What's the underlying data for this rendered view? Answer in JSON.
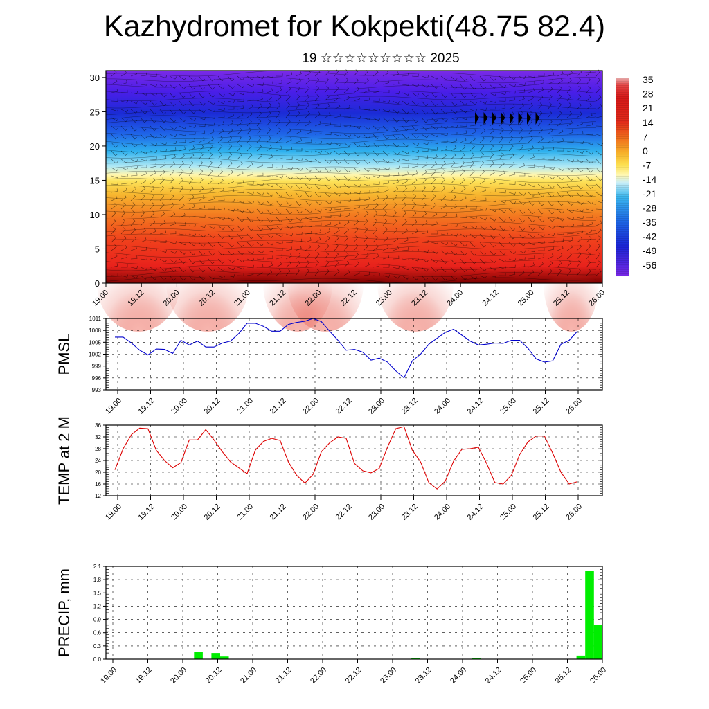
{
  "title": "Kazhydromet for Kokpekti(48.75 82.4)",
  "subtitle": "19 ☆☆☆☆☆☆☆☆☆ 2025",
  "colors": {
    "pmsl_line": "#0000cc",
    "temp_line": "#dd0000",
    "precip_bar": "#00ee00"
  },
  "chart_data": [
    {
      "type": "heatmap",
      "name": "vertical cross-section",
      "x_ticks": [
        "19.00",
        "19.12",
        "20.00",
        "20.12",
        "21.00",
        "21.12",
        "22.00",
        "22.12",
        "23.00",
        "23.12",
        "24.00",
        "24.12",
        "25.00",
        "25.12",
        "26.00"
      ],
      "y_ticks": [
        "0",
        "5",
        "10",
        "15",
        "20",
        "25",
        "30"
      ],
      "ylim": [
        0,
        31
      ],
      "colorbar_labels": [
        "35",
        "28",
        "21",
        "14",
        "7",
        "0",
        "-7",
        "-14",
        "-21",
        "-28",
        "-35",
        "-42",
        "-49",
        "-56"
      ],
      "colorbar_range": [
        -60,
        38
      ]
    },
    {
      "type": "line",
      "ylabel": "PMSL",
      "x_ticks": [
        "19.00",
        "19.12",
        "20.00",
        "20.12",
        "21.00",
        "21.12",
        "22.00",
        "22.12",
        "23.00",
        "23.12",
        "24.00",
        "24.12",
        "25.00",
        "25.12",
        "26.00"
      ],
      "y_ticks": [
        "1011",
        "1008",
        "1005",
        "1002",
        "999",
        "996",
        "993"
      ],
      "ylim": [
        993,
        1011
      ],
      "series": [
        {
          "values": [
            1006.3,
            1006.3,
            1004.8,
            1003.0,
            1001.8,
            1003.3,
            1003.2,
            1002.2,
            1005.5,
            1004.3,
            1005.3,
            1003.8,
            1003.8,
            1004.8,
            1005.3,
            1007.2,
            1009.8,
            1009.8,
            1009.0,
            1007.8,
            1007.8,
            1009.5,
            1010.0,
            1010.3,
            1011.0,
            1010.2,
            1007.8,
            1005.5,
            1003.0,
            1003.2,
            1002.5,
            1000.5,
            1001.0,
            1000.0,
            997.8,
            996.0,
            1000.3,
            1002.0,
            1004.5,
            1006.0,
            1007.5,
            1008.3,
            1006.8,
            1005.3,
            1004.3,
            1004.5,
            1004.8,
            1004.7,
            1005.5,
            1005.5,
            1003.5,
            1000.8,
            1000.0,
            1000.3,
            1004.5,
            1005.5,
            1007.8
          ]
        }
      ]
    },
    {
      "type": "line",
      "ylabel": "TEMP at 2 M",
      "x_ticks": [
        "19.00",
        "19.12",
        "20.00",
        "20.12",
        "21.00",
        "21.12",
        "22.00",
        "22.12",
        "23.00",
        "23.12",
        "24.00",
        "24.12",
        "25.00",
        "25.12",
        "26.00"
      ],
      "y_ticks": [
        "36",
        "32",
        "28",
        "24",
        "20",
        "16",
        "12"
      ],
      "ylim": [
        12,
        36
      ],
      "series": [
        {
          "values": [
            20.8,
            28.0,
            32.8,
            35.0,
            34.8,
            27.5,
            24.0,
            21.5,
            23.3,
            31.0,
            31.0,
            34.5,
            31.0,
            27.0,
            23.5,
            21.5,
            19.5,
            27.5,
            30.5,
            31.5,
            30.8,
            23.5,
            19.0,
            16.3,
            19.3,
            27.0,
            30.0,
            32.0,
            31.5,
            23.0,
            20.5,
            19.8,
            21.3,
            28.5,
            34.8,
            35.5,
            27.5,
            23.5,
            16.5,
            14.3,
            17.0,
            23.8,
            27.8,
            28.0,
            28.5,
            23.0,
            16.5,
            16.0,
            19.0,
            26.0,
            30.3,
            32.3,
            32.3,
            26.5,
            20.0,
            16.0,
            16.8
          ]
        }
      ]
    },
    {
      "type": "bar",
      "ylabel": "PRECIP, mm",
      "x_ticks": [
        "19.00",
        "19.12",
        "20.00",
        "20.12",
        "21.00",
        "21.12",
        "22.00",
        "22.12",
        "23.00",
        "23.12",
        "24.00",
        "24.12",
        "25.00",
        "25.12",
        "26.00"
      ],
      "y_ticks": [
        "2.1",
        "1.8",
        "1.5",
        "1.2",
        "0.9",
        "0.6",
        "0.3",
        "0.0"
      ],
      "ylim": [
        0,
        2.1
      ],
      "values": [
        0,
        0,
        0,
        0,
        0,
        0,
        0,
        0,
        0,
        0,
        0.16,
        0,
        0.14,
        0.06,
        0,
        0,
        0,
        0,
        0,
        0,
        0,
        0,
        0,
        0,
        0,
        0,
        0,
        0,
        0,
        0,
        0,
        0,
        0,
        0,
        0,
        0.03,
        0,
        0,
        0,
        0,
        0,
        0,
        0.02,
        0,
        0,
        0,
        0,
        0,
        0,
        0,
        0,
        0,
        0,
        0,
        0.08,
        2.0,
        0.77
      ]
    }
  ]
}
